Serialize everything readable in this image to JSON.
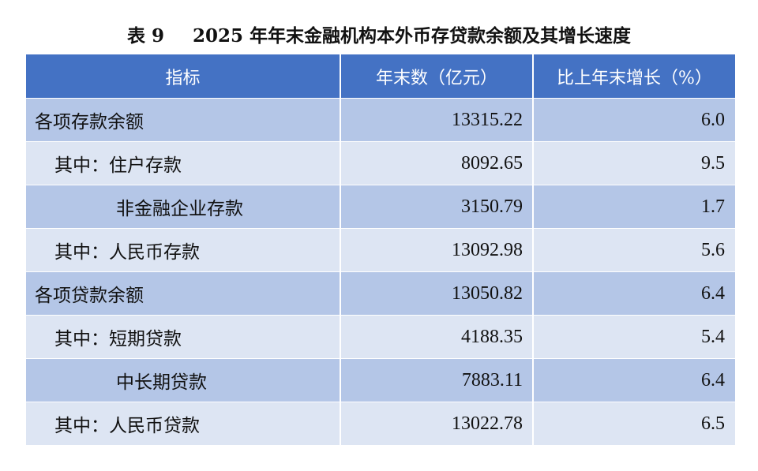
{
  "title": {
    "number": "表 9",
    "text": "2025 年年末金融机构本外币存贷款余额及其增长速度"
  },
  "table": {
    "headers": [
      "指标",
      "年末数（亿元）",
      "比上年末增长（%）"
    ],
    "rows": [
      {
        "label": "各项存款余额",
        "value": "13315.22",
        "growth": "6.0"
      },
      {
        "label": "其中：住户存款",
        "value": "8092.65",
        "growth": "9.5"
      },
      {
        "label": "非金融企业存款",
        "value": "3150.79",
        "growth": "1.7"
      },
      {
        "label": "其中：人民币存款",
        "value": "13092.98",
        "growth": "5.6"
      },
      {
        "label": "各项贷款余额",
        "value": "13050.82",
        "growth": "6.4"
      },
      {
        "label": "其中：短期贷款",
        "value": "4188.35",
        "growth": "5.4"
      },
      {
        "label": "中长期贷款",
        "value": "7883.11",
        "growth": "6.4"
      },
      {
        "label": "其中：人民币贷款",
        "value": "13022.78",
        "growth": "6.5"
      }
    ]
  },
  "colors": {
    "header_bg": "#4472c4",
    "row_dark": "#b4c6e7",
    "row_light": "#dde5f3"
  }
}
